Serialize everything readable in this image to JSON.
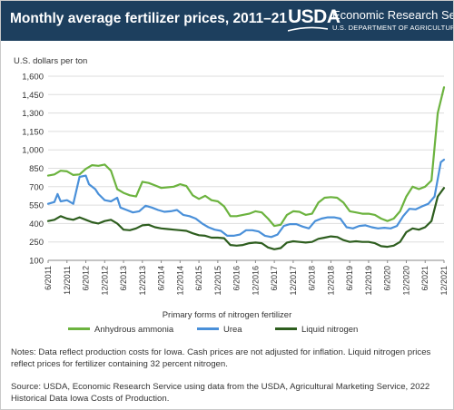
{
  "header": {
    "title": "Monthly average fertilizer prices, 2011–21",
    "logo_mark": "USDA",
    "logo_agency": "Economic Research Service",
    "logo_department": "U.S. DEPARTMENT OF AGRICULTURE",
    "background_color": "#1d3f5e"
  },
  "footer": {
    "notes": "Notes: Data reflect production costs for Iowa. Cash prices are not adjusted for inflation. Liquid nitrogen prices reflect prices for fertilizer containing 32 percent nitrogen.",
    "source": "Source: USDA, Economic Research Service using data from the USDA, Agricultural Marketing Service, 2022 Historical Data Iowa Costs of Production."
  },
  "chart_data": {
    "type": "line",
    "title": "Monthly average fertilizer prices, 2011–21",
    "ylabel": "U.S. dollars per ton",
    "legend_title": "Primary forms of nitrogen fertilizer",
    "legend_position": "bottom",
    "grid": true,
    "ylim": [
      100,
      1600
    ],
    "yticks": [
      100,
      250,
      400,
      550,
      700,
      850,
      1000,
      1150,
      1300,
      1450,
      1600
    ],
    "ytick_labels": [
      "100",
      "250",
      "400",
      "550",
      "700",
      "850",
      "1,000",
      "1,150",
      "1,300",
      "1,450",
      "1,600"
    ],
    "xlim": [
      "2011-06",
      "2021-12"
    ],
    "xtick_labels": [
      "6/2011",
      "12/2011",
      "6/2012",
      "12/2012",
      "6/2013",
      "12/2013",
      "6/2014",
      "12/2014",
      "6/2015",
      "12/2015",
      "6/2016",
      "12/2016",
      "6/2017",
      "12/2017",
      "6/2018",
      "12/2018",
      "6/2019",
      "12/2019",
      "6/2020",
      "12/2020",
      "6/2021",
      "12/2021"
    ],
    "series": [
      {
        "name": "Anhydrous ammonia",
        "color": "#6cb33f",
        "points": [
          [
            "2011-06",
            790
          ],
          [
            "2011-08",
            800
          ],
          [
            "2011-10",
            830
          ],
          [
            "2011-12",
            825
          ],
          [
            "2012-02",
            795
          ],
          [
            "2012-04",
            800
          ],
          [
            "2012-06",
            845
          ],
          [
            "2012-08",
            875
          ],
          [
            "2012-10",
            870
          ],
          [
            "2012-12",
            880
          ],
          [
            "2013-02",
            830
          ],
          [
            "2013-04",
            680
          ],
          [
            "2013-06",
            650
          ],
          [
            "2013-08",
            630
          ],
          [
            "2013-10",
            620
          ],
          [
            "2013-12",
            740
          ],
          [
            "2014-02",
            730
          ],
          [
            "2014-04",
            710
          ],
          [
            "2014-06",
            690
          ],
          [
            "2014-08",
            695
          ],
          [
            "2014-10",
            700
          ],
          [
            "2014-12",
            720
          ],
          [
            "2015-02",
            705
          ],
          [
            "2015-04",
            630
          ],
          [
            "2015-06",
            600
          ],
          [
            "2015-08",
            625
          ],
          [
            "2015-10",
            590
          ],
          [
            "2015-12",
            580
          ],
          [
            "2016-02",
            540
          ],
          [
            "2016-04",
            460
          ],
          [
            "2016-06",
            460
          ],
          [
            "2016-08",
            470
          ],
          [
            "2016-10",
            480
          ],
          [
            "2016-12",
            500
          ],
          [
            "2017-02",
            490
          ],
          [
            "2017-04",
            440
          ],
          [
            "2017-06",
            380
          ],
          [
            "2017-08",
            390
          ],
          [
            "2017-10",
            470
          ],
          [
            "2017-12",
            500
          ],
          [
            "2018-02",
            495
          ],
          [
            "2018-04",
            470
          ],
          [
            "2018-06",
            480
          ],
          [
            "2018-08",
            570
          ],
          [
            "2018-10",
            610
          ],
          [
            "2018-12",
            615
          ],
          [
            "2019-02",
            610
          ],
          [
            "2019-04",
            570
          ],
          [
            "2019-06",
            500
          ],
          [
            "2019-08",
            490
          ],
          [
            "2019-10",
            480
          ],
          [
            "2019-12",
            480
          ],
          [
            "2020-02",
            470
          ],
          [
            "2020-04",
            440
          ],
          [
            "2020-06",
            420
          ],
          [
            "2020-08",
            440
          ],
          [
            "2020-10",
            500
          ],
          [
            "2020-12",
            620
          ],
          [
            "2021-02",
            700
          ],
          [
            "2021-04",
            680
          ],
          [
            "2021-06",
            700
          ],
          [
            "2021-08",
            750
          ],
          [
            "2021-10",
            1300
          ],
          [
            "2021-12",
            1510
          ]
        ]
      },
      {
        "name": "Urea",
        "color": "#4a90d9",
        "points": [
          [
            "2011-06",
            560
          ],
          [
            "2011-08",
            575
          ],
          [
            "2011-09",
            640
          ],
          [
            "2011-10",
            580
          ],
          [
            "2011-12",
            590
          ],
          [
            "2012-02",
            560
          ],
          [
            "2012-04",
            780
          ],
          [
            "2012-06",
            790
          ],
          [
            "2012-07",
            720
          ],
          [
            "2012-09",
            680
          ],
          [
            "2012-10",
            640
          ],
          [
            "2012-12",
            590
          ],
          [
            "2013-02",
            580
          ],
          [
            "2013-04",
            610
          ],
          [
            "2013-05",
            530
          ],
          [
            "2013-07",
            510
          ],
          [
            "2013-09",
            490
          ],
          [
            "2013-11",
            500
          ],
          [
            "2014-01",
            545
          ],
          [
            "2014-03",
            530
          ],
          [
            "2014-05",
            510
          ],
          [
            "2014-07",
            495
          ],
          [
            "2014-09",
            500
          ],
          [
            "2014-11",
            510
          ],
          [
            "2015-01",
            470
          ],
          [
            "2015-03",
            460
          ],
          [
            "2015-05",
            440
          ],
          [
            "2015-07",
            400
          ],
          [
            "2015-09",
            370
          ],
          [
            "2015-11",
            350
          ],
          [
            "2016-01",
            340
          ],
          [
            "2016-03",
            300
          ],
          [
            "2016-05",
            300
          ],
          [
            "2016-07",
            310
          ],
          [
            "2016-09",
            345
          ],
          [
            "2016-11",
            345
          ],
          [
            "2017-01",
            335
          ],
          [
            "2017-03",
            300
          ],
          [
            "2017-05",
            290
          ],
          [
            "2017-07",
            310
          ],
          [
            "2017-09",
            380
          ],
          [
            "2017-11",
            395
          ],
          [
            "2018-01",
            395
          ],
          [
            "2018-03",
            375
          ],
          [
            "2018-05",
            360
          ],
          [
            "2018-07",
            420
          ],
          [
            "2018-09",
            440
          ],
          [
            "2018-11",
            450
          ],
          [
            "2019-01",
            450
          ],
          [
            "2019-03",
            440
          ],
          [
            "2019-05",
            370
          ],
          [
            "2019-07",
            360
          ],
          [
            "2019-09",
            380
          ],
          [
            "2019-11",
            385
          ],
          [
            "2020-01",
            370
          ],
          [
            "2020-03",
            360
          ],
          [
            "2020-05",
            365
          ],
          [
            "2020-07",
            360
          ],
          [
            "2020-09",
            380
          ],
          [
            "2020-11",
            460
          ],
          [
            "2021-01",
            520
          ],
          [
            "2021-03",
            515
          ],
          [
            "2021-05",
            540
          ],
          [
            "2021-07",
            560
          ],
          [
            "2021-09",
            620
          ],
          [
            "2021-11",
            900
          ],
          [
            "2021-12",
            920
          ]
        ]
      },
      {
        "name": "Liquid nitrogen",
        "color": "#2e5e1f",
        "points": [
          [
            "2011-06",
            420
          ],
          [
            "2011-08",
            430
          ],
          [
            "2011-10",
            460
          ],
          [
            "2011-12",
            440
          ],
          [
            "2012-02",
            430
          ],
          [
            "2012-04",
            450
          ],
          [
            "2012-06",
            430
          ],
          [
            "2012-08",
            410
          ],
          [
            "2012-10",
            400
          ],
          [
            "2012-12",
            420
          ],
          [
            "2013-02",
            430
          ],
          [
            "2013-04",
            400
          ],
          [
            "2013-06",
            350
          ],
          [
            "2013-08",
            345
          ],
          [
            "2013-10",
            360
          ],
          [
            "2013-12",
            385
          ],
          [
            "2014-02",
            390
          ],
          [
            "2014-04",
            370
          ],
          [
            "2014-06",
            360
          ],
          [
            "2014-08",
            355
          ],
          [
            "2014-10",
            350
          ],
          [
            "2014-12",
            345
          ],
          [
            "2015-02",
            340
          ],
          [
            "2015-04",
            320
          ],
          [
            "2015-06",
            305
          ],
          [
            "2015-08",
            300
          ],
          [
            "2015-10",
            285
          ],
          [
            "2015-12",
            285
          ],
          [
            "2016-02",
            280
          ],
          [
            "2016-04",
            225
          ],
          [
            "2016-06",
            220
          ],
          [
            "2016-08",
            225
          ],
          [
            "2016-10",
            240
          ],
          [
            "2016-12",
            245
          ],
          [
            "2017-02",
            240
          ],
          [
            "2017-04",
            205
          ],
          [
            "2017-06",
            190
          ],
          [
            "2017-08",
            200
          ],
          [
            "2017-10",
            245
          ],
          [
            "2017-12",
            255
          ],
          [
            "2018-02",
            250
          ],
          [
            "2018-04",
            245
          ],
          [
            "2018-06",
            250
          ],
          [
            "2018-08",
            275
          ],
          [
            "2018-10",
            285
          ],
          [
            "2018-12",
            295
          ],
          [
            "2019-02",
            290
          ],
          [
            "2019-04",
            265
          ],
          [
            "2019-06",
            250
          ],
          [
            "2019-08",
            255
          ],
          [
            "2019-10",
            250
          ],
          [
            "2019-12",
            250
          ],
          [
            "2020-02",
            240
          ],
          [
            "2020-04",
            215
          ],
          [
            "2020-06",
            210
          ],
          [
            "2020-08",
            220
          ],
          [
            "2020-10",
            250
          ],
          [
            "2020-12",
            330
          ],
          [
            "2021-02",
            360
          ],
          [
            "2021-04",
            350
          ],
          [
            "2021-06",
            370
          ],
          [
            "2021-08",
            420
          ],
          [
            "2021-10",
            620
          ],
          [
            "2021-12",
            690
          ]
        ]
      }
    ]
  }
}
